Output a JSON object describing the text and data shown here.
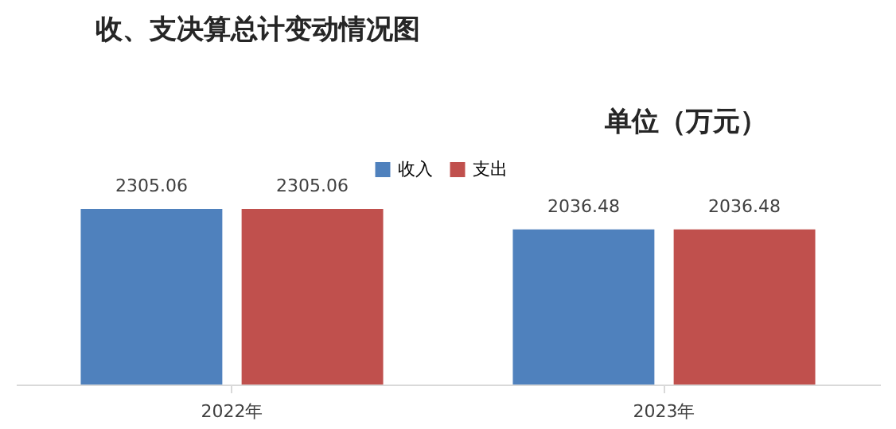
{
  "chart_data": {
    "type": "bar",
    "title": "收、支决算总计变动情况图",
    "annotations": [
      "单位（万元）"
    ],
    "categories": [
      "2022年",
      "2023年"
    ],
    "series": [
      {
        "name": "收入",
        "color": "#4f81bd",
        "values": [
          2305.06,
          2036.48
        ]
      },
      {
        "name": "支出",
        "color": "#c0504d",
        "values": [
          2305.06,
          2036.48
        ]
      }
    ],
    "data_labels": true,
    "legend": "top",
    "grid": false
  }
}
